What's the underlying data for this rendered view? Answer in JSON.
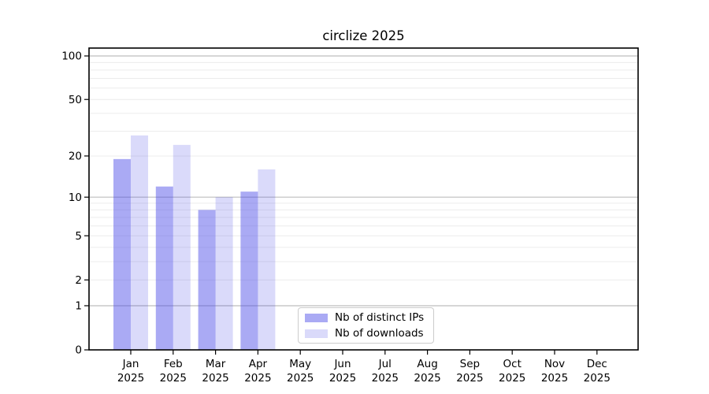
{
  "figure": {
    "title": "circlize 2025"
  },
  "chart_data": {
    "type": "bar",
    "title": "circlize 2025",
    "categories": [
      "Jan",
      "Feb",
      "Mar",
      "Apr",
      "May",
      "Jun",
      "Jul",
      "Aug",
      "Sep",
      "Oct",
      "Nov",
      "Dec"
    ],
    "category_year": "2025",
    "series": [
      {
        "name": "Nb of distinct IPs",
        "color": "rgba(70,70,232,0.46)",
        "values": [
          19,
          12,
          8,
          11,
          null,
          null,
          null,
          null,
          null,
          null,
          null,
          null
        ]
      },
      {
        "name": "Nb of downloads",
        "color": "rgba(70,70,232,0.20)",
        "values": [
          28,
          24,
          10,
          16,
          null,
          null,
          null,
          null,
          null,
          null,
          null,
          null
        ]
      }
    ],
    "xlabel": "",
    "ylabel": "",
    "yscale": "log1p",
    "ylim": [
      0,
      100
    ],
    "ytick_labels": [
      0,
      1,
      2,
      5,
      10,
      20,
      50,
      100
    ],
    "major_gridlines": [
      1,
      10,
      100
    ],
    "minor_gridlines": [
      2,
      3,
      4,
      5,
      6,
      7,
      8,
      9,
      20,
      30,
      40,
      50,
      60,
      70,
      80,
      90
    ],
    "grid": true,
    "legend_position": "lower center-left inside plot"
  },
  "colors": {
    "bar_dark": "rgba(70,70,232,0.46)",
    "bar_light": "rgba(70,70,232,0.20)",
    "major_grid": "#bdbdbd",
    "minor_grid": "#ececec",
    "spine": "#000000",
    "text": "#000000",
    "legend_border": "#cccccc"
  }
}
